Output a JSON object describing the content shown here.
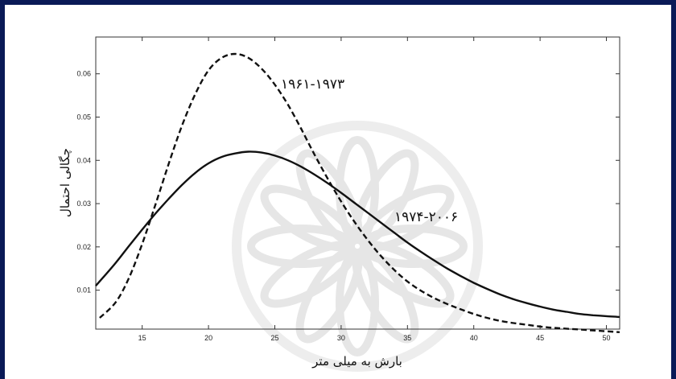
{
  "chart_data": {
    "type": "line",
    "title": "",
    "xlabel": "بارش به میلی متر",
    "ylabel": "چگالی احتمال",
    "xlim": [
      11.5,
      51
    ],
    "ylim": [
      0.001,
      0.0685
    ],
    "xticks": [
      15,
      20,
      25,
      30,
      35,
      40,
      45,
      50
    ],
    "yticks": [
      0.01,
      0.02,
      0.03,
      0.04,
      0.05,
      0.06
    ],
    "ytick_labels": [
      "0.01",
      "0.02",
      "0.03",
      "0.04",
      "0.05",
      "0.06"
    ],
    "grid": false,
    "legend": "none (series labeled directly on curves)",
    "series": [
      {
        "name": "۱۹۶۱-۱۹۷۳",
        "style": "dashed",
        "color": "#111111",
        "x": [
          11.8,
          13,
          14,
          15,
          16,
          17,
          18,
          19,
          20,
          21,
          22,
          23,
          24,
          25,
          26,
          27,
          28,
          29,
          30,
          31,
          32,
          33,
          34,
          35,
          36,
          37,
          38,
          39,
          40,
          41,
          42,
          43,
          44,
          45,
          46,
          48,
          50,
          51
        ],
        "y": [
          0.0036,
          0.0072,
          0.0128,
          0.0207,
          0.0298,
          0.0392,
          0.048,
          0.0553,
          0.0608,
          0.0637,
          0.0646,
          0.0637,
          0.0612,
          0.0575,
          0.0528,
          0.0472,
          0.0413,
          0.0357,
          0.0305,
          0.0258,
          0.0216,
          0.0179,
          0.0147,
          0.012,
          0.0099,
          0.0082,
          0.0068,
          0.0056,
          0.0045,
          0.0036,
          0.0029,
          0.0024,
          0.002,
          0.0016,
          0.0013,
          0.0009,
          0.0005,
          0.0003
        ]
      },
      {
        "name": "۱۹۷۴-۲۰۰۶",
        "style": "solid",
        "color": "#111111",
        "x": [
          11.5,
          13,
          14,
          15,
          16,
          17,
          18,
          19,
          20,
          21,
          22,
          23,
          24,
          25,
          26,
          27,
          28,
          29,
          30,
          31,
          32,
          33,
          34,
          35,
          36,
          37,
          38,
          39,
          40,
          41,
          42,
          43,
          44,
          45,
          46,
          47,
          48,
          49,
          50,
          51
        ],
        "y": [
          0.011,
          0.0163,
          0.0202,
          0.024,
          0.0277,
          0.0311,
          0.0343,
          0.0371,
          0.0393,
          0.0408,
          0.0416,
          0.042,
          0.0418,
          0.0411,
          0.04,
          0.0385,
          0.0367,
          0.0347,
          0.0325,
          0.0302,
          0.0279,
          0.0256,
          0.0233,
          0.021,
          0.0189,
          0.0169,
          0.015,
          0.0133,
          0.0117,
          0.0103,
          0.009,
          0.0079,
          0.007,
          0.0062,
          0.0055,
          0.005,
          0.0045,
          0.0042,
          0.004,
          0.0038
        ]
      }
    ],
    "annotations": [
      {
        "text": "۱۹۶۱-۱۹۷۳",
        "series": 0
      },
      {
        "text": "۱۹۷۴-۲۰۰۶",
        "series": 1
      }
    ]
  }
}
